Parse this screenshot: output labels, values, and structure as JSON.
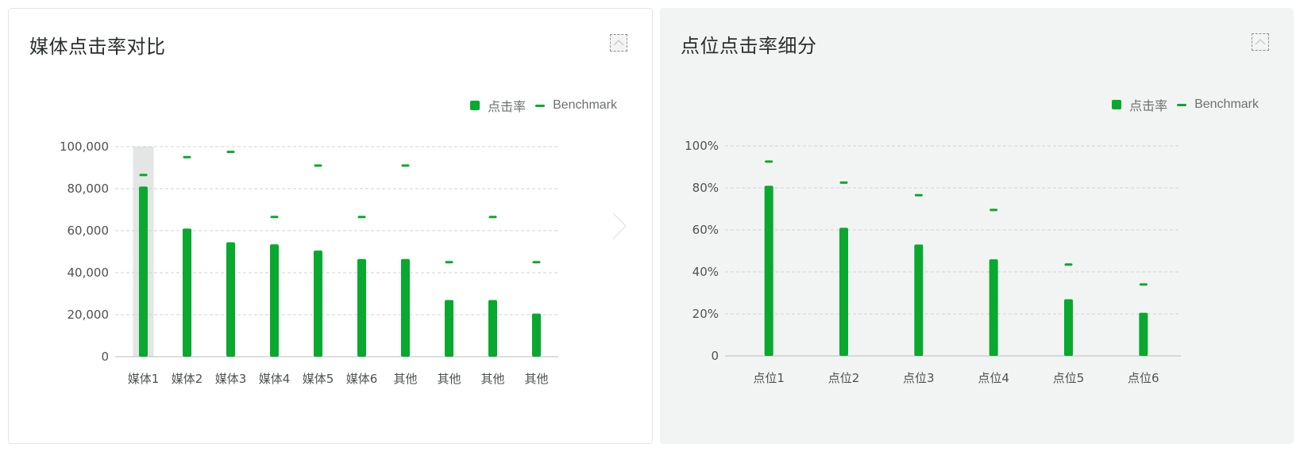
{
  "colors": {
    "bar": "#09a82f",
    "grid": "#cfd3d2",
    "axis": "#b9bebc",
    "hover": "#e4e5e5"
  },
  "left_panel": {
    "title": "媒体点击率对比",
    "collapse_icon": "chevron-up-icon",
    "legend": {
      "bar_label": "点击率",
      "benchmark_label": "Benchmark"
    }
  },
  "right_panel": {
    "title": "点位点击率细分",
    "collapse_icon": "chevron-up-icon",
    "legend": {
      "bar_label": "点击率",
      "benchmark_label": "Benchmark"
    }
  },
  "chart_data": [
    {
      "type": "bar",
      "title": "媒体点击率对比",
      "categories": [
        "媒体1",
        "媒体2",
        "媒体3",
        "媒体4",
        "媒体5",
        "媒体6",
        "其他",
        "其他",
        "其他",
        "其他"
      ],
      "series": [
        {
          "name": "点击率",
          "type": "bar",
          "values": [
            81000,
            61000,
            54500,
            53500,
            50500,
            46500,
            46500,
            27000,
            27000,
            20500
          ]
        },
        {
          "name": "Benchmark",
          "type": "marker",
          "values": [
            86500,
            95000,
            97500,
            66500,
            91000,
            66500,
            91000,
            45000,
            66500,
            45000
          ]
        }
      ],
      "y_ticks": [
        "0",
        "20,000",
        "40,000",
        "60,000",
        "80,000",
        "100,000"
      ],
      "ylim": [
        0,
        100000
      ],
      "grid": true,
      "legend_position": "top-right",
      "highlighted_category_index": 0
    },
    {
      "type": "bar",
      "title": "点位点击率细分",
      "categories": [
        "点位1",
        "点位2",
        "点位3",
        "点位4",
        "点位5",
        "点位6"
      ],
      "series": [
        {
          "name": "点击率",
          "type": "bar",
          "values": [
            81,
            61,
            53,
            46,
            27,
            20.5
          ]
        },
        {
          "name": "Benchmark",
          "type": "marker",
          "values": [
            92.5,
            82.5,
            76.5,
            69.5,
            43.5,
            34
          ]
        }
      ],
      "y_ticks": [
        "0",
        "20%",
        "40%",
        "60%",
        "80%",
        "100%"
      ],
      "ylim": [
        0,
        100
      ],
      "grid": true,
      "legend_position": "top-right"
    }
  ]
}
